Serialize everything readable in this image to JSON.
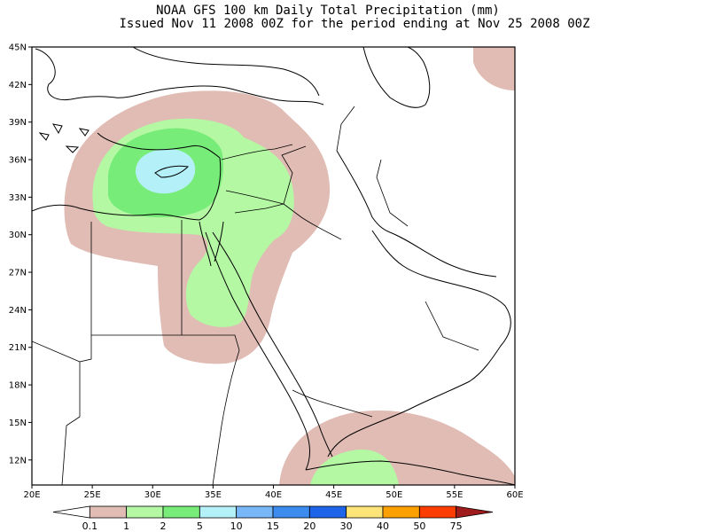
{
  "title": {
    "line1": "NOAA GFS 100 km Daily Total Precipitation (mm)",
    "line2": "Issued Nov 11 2008 00Z for the period ending at Nov 25 2008 00Z"
  },
  "map": {
    "lon_range": [
      20,
      60
    ],
    "lat_range": [
      10,
      45
    ],
    "lat_ticks": [
      {
        "value": 45,
        "label": "45N"
      },
      {
        "value": 42,
        "label": "42N"
      },
      {
        "value": 39,
        "label": "39N"
      },
      {
        "value": 36,
        "label": "36N"
      },
      {
        "value": 33,
        "label": "33N"
      },
      {
        "value": 30,
        "label": "30N"
      },
      {
        "value": 27,
        "label": "27N"
      },
      {
        "value": 24,
        "label": "24N"
      },
      {
        "value": 21,
        "label": "21N"
      },
      {
        "value": 18,
        "label": "18N"
      },
      {
        "value": 15,
        "label": "15N"
      },
      {
        "value": 12,
        "label": "12N"
      }
    ],
    "lon_ticks": [
      {
        "value": 20,
        "label": "20E"
      },
      {
        "value": 25,
        "label": "25E"
      },
      {
        "value": 30,
        "label": "30E"
      },
      {
        "value": 35,
        "label": "35E"
      },
      {
        "value": 40,
        "label": "40E"
      },
      {
        "value": 45,
        "label": "45E"
      },
      {
        "value": 50,
        "label": "50E"
      },
      {
        "value": 55,
        "label": "55E"
      },
      {
        "value": 60,
        "label": "60E"
      }
    ],
    "precip_colors": {
      "0.1-1": "#e0bcb4",
      "1-2": "#b4f8a4",
      "2-5": "#78ec78",
      "5-10": "#b4f0f8"
    }
  },
  "colorbar": {
    "colors": [
      "#ffffff",
      "#e0bcb4",
      "#b4f8a4",
      "#78ec78",
      "#b4f0f8",
      "#78b8f8",
      "#3c8cf0",
      "#1e64e8",
      "#fce478",
      "#fca000",
      "#fc3c00",
      "#a01c1c"
    ],
    "labels": [
      "0.1",
      "1",
      "2",
      "5",
      "10",
      "15",
      "20",
      "30",
      "40",
      "50",
      "75"
    ]
  }
}
